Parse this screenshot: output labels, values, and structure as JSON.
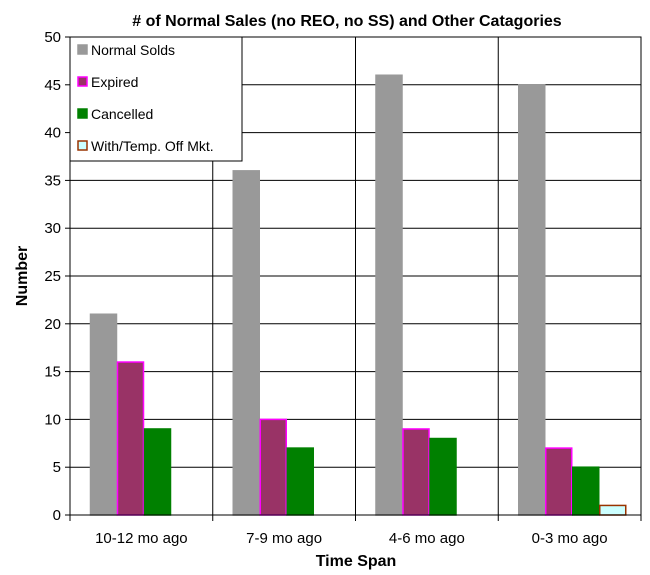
{
  "chart_data": {
    "type": "bar",
    "title": "# of Normal Sales (no REO, no SS)  and Other Catagories",
    "xlabel": "Time Span",
    "ylabel": "Number",
    "ylim": [
      0,
      50
    ],
    "yticks": [
      "0",
      "5",
      "10",
      "15",
      "20",
      "25",
      "30",
      "35",
      "40",
      "45",
      "50"
    ],
    "categories": [
      "10-12 mo ago",
      "7-9 mo ago",
      "4-6 mo ago",
      "0-3 mo ago"
    ],
    "series": [
      {
        "name": "Normal Solds",
        "values": [
          21,
          36,
          46,
          45
        ],
        "color": "#999999",
        "stroke": "#999999"
      },
      {
        "name": "Expired",
        "values": [
          16,
          10,
          9,
          7
        ],
        "color": "#993366",
        "stroke": "#ff00ff"
      },
      {
        "name": "Cancelled",
        "values": [
          9,
          7,
          8,
          5
        ],
        "color": "#008000",
        "stroke": "#008000"
      },
      {
        "name": "With/Temp. Off Mkt.",
        "values": [
          0,
          0,
          0,
          1
        ],
        "color": "#ccffff",
        "stroke": "#993300"
      }
    ],
    "grid": true,
    "legend_position": "top-left"
  }
}
